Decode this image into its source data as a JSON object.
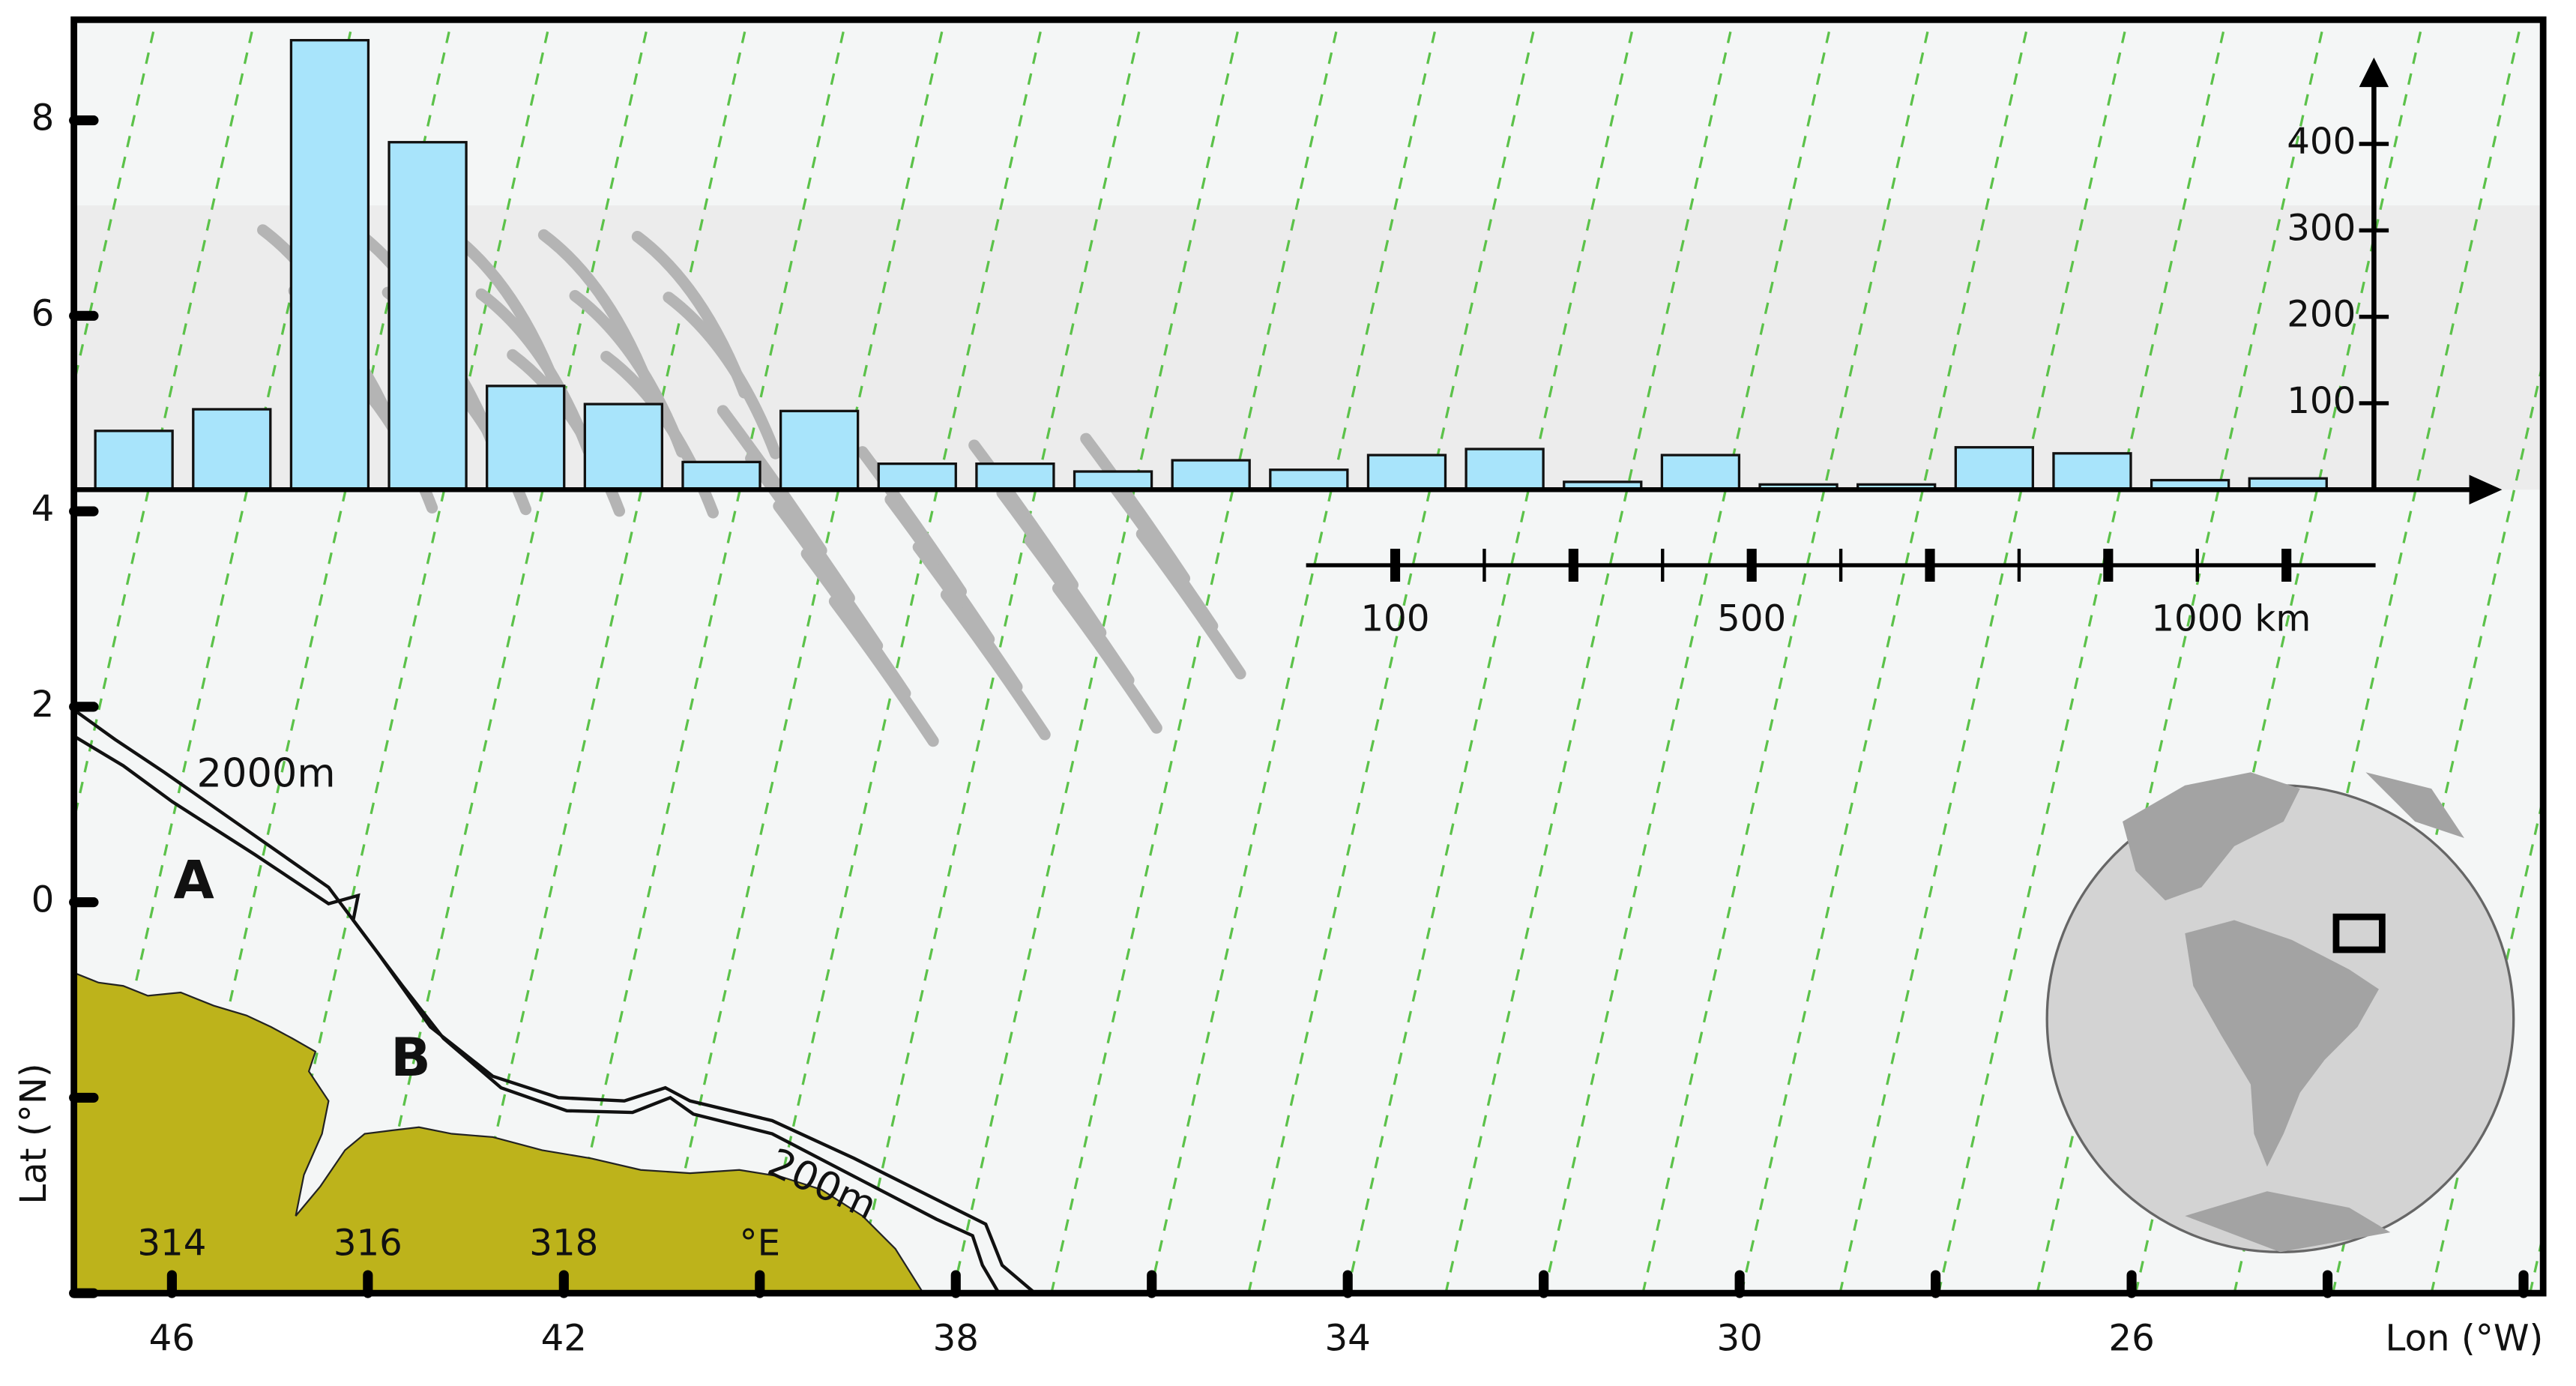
{
  "chart_data": [
    {
      "type": "map",
      "xlabel": "Lon (°W)",
      "ylabel": "Lat (°N)",
      "xlim": [
        47,
        21.8
      ],
      "ylim": [
        -4,
        9.03
      ],
      "xticks": [
        46,
        42,
        38,
        34,
        30,
        26
      ],
      "xminor": [
        44,
        40,
        36,
        32,
        28,
        24,
        22
      ],
      "yticks": [
        0,
        2,
        4,
        6,
        8
      ],
      "yminor": [
        -2,
        -4
      ],
      "east_ticks": [
        {
          "value": 46,
          "label": "314"
        },
        {
          "value": 44,
          "label": "316"
        },
        {
          "value": 42,
          "label": "318"
        },
        {
          "value": 40,
          "label": "°E"
        }
      ],
      "annotations": [
        "A",
        "B",
        "2000m",
        "200m"
      ],
      "scale_bar": {
        "lim": [
          0,
          1200
        ],
        "major_ticks": [
          100,
          300,
          500,
          700,
          900,
          1100
        ],
        "minor_ticks": [
          200,
          400,
          600,
          800,
          1000
        ],
        "labels": [
          100,
          500,
          {
            "value": 1000,
            "label": "1000 km"
          }
        ]
      },
      "land_color": "#bdb31b",
      "track_color": "#5cc24a"
    },
    {
      "type": "bar",
      "categories": [
        null,
        null,
        null,
        null,
        null,
        null,
        null,
        null,
        null,
        null,
        null,
        null,
        null,
        null,
        null,
        null,
        null,
        null,
        null,
        null,
        null,
        null,
        null
      ],
      "values": [
        68,
        93,
        520,
        402,
        120,
        99,
        32,
        91,
        30,
        30,
        21,
        34,
        23,
        40,
        47,
        9,
        40,
        6,
        6,
        49,
        42,
        11,
        13
      ],
      "color": "#a8e4fb",
      "ylim": [
        0,
        500
      ],
      "yticks": [
        100,
        200,
        300,
        400
      ]
    }
  ]
}
